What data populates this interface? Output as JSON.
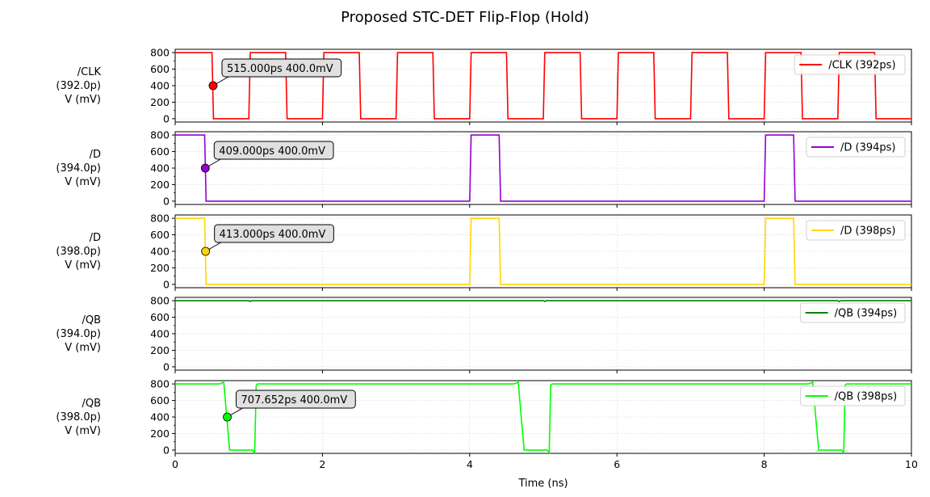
{
  "chart_data": {
    "type": "line",
    "title": "Proposed STC-DET Flip-Flop (Hold)",
    "xlabel": "Time (ns)",
    "xlim": [
      0,
      10
    ],
    "xticks": [
      "0",
      "2",
      "4",
      "6",
      "8",
      "10"
    ],
    "ylim": [
      -40,
      840
    ],
    "yticks": [
      "0",
      "200",
      "400",
      "600",
      "800"
    ],
    "grid": true,
    "legend_position": "upper-right",
    "panels": [
      {
        "ylabel": [
          "/CLK",
          "(392.0p)",
          "V (mV)"
        ],
        "legend": "/CLK (392ps)",
        "color": "#ff0000",
        "x": [
          0,
          0.5,
          0.52,
          1.0,
          1.02,
          1.5,
          1.52,
          2.0,
          2.02,
          2.5,
          2.52,
          3.0,
          3.02,
          3.5,
          3.52,
          4.0,
          4.02,
          4.5,
          4.52,
          5.0,
          5.02,
          5.5,
          5.52,
          6.0,
          6.02,
          6.5,
          6.52,
          7.0,
          7.02,
          7.5,
          7.52,
          8.0,
          8.02,
          8.5,
          8.52,
          9.0,
          9.02,
          9.5,
          9.52,
          10.0
        ],
        "y": [
          800,
          800,
          0,
          0,
          800,
          800,
          0,
          0,
          800,
          800,
          0,
          0,
          800,
          800,
          0,
          0,
          800,
          800,
          0,
          0,
          800,
          800,
          0,
          0,
          800,
          800,
          0,
          0,
          800,
          800,
          0,
          0,
          800,
          800,
          0,
          0,
          800,
          800,
          0,
          0
        ],
        "marker": {
          "x": 0.515,
          "y": 400,
          "label": "515.000ps 400.0mV"
        }
      },
      {
        "ylabel": [
          "/D",
          "(394.0p)",
          "V (mV)"
        ],
        "legend": "/D (394ps)",
        "color": "#9400d3",
        "x": [
          0,
          0.4,
          0.42,
          4.0,
          4.02,
          4.4,
          4.42,
          8.0,
          8.02,
          8.4,
          8.42,
          10.0
        ],
        "y": [
          800,
          800,
          0,
          0,
          800,
          800,
          0,
          0,
          800,
          800,
          0,
          0
        ],
        "marker": {
          "x": 0.409,
          "y": 400,
          "label": "409.000ps 400.0mV"
        }
      },
      {
        "ylabel": [
          "/D",
          "(398.0p)",
          "V (mV)"
        ],
        "legend": "/D (398ps)",
        "color": "#ffd700",
        "x": [
          0,
          0.4,
          0.42,
          4.0,
          4.02,
          4.4,
          4.42,
          8.0,
          8.02,
          8.4,
          8.42,
          10.0
        ],
        "y": [
          800,
          800,
          0,
          0,
          800,
          800,
          0,
          0,
          800,
          800,
          0,
          0
        ],
        "marker": {
          "x": 0.413,
          "y": 400,
          "label": "413.000ps 400.0mV"
        }
      },
      {
        "ylabel": [
          "/QB",
          "(394.0p)",
          "V (mV)"
        ],
        "legend": "/QB (394ps)",
        "color": "#008000",
        "x": [
          0,
          1.0,
          1.02,
          1.04,
          5.0,
          5.02,
          5.04,
          9.0,
          9.02,
          9.04,
          10.0
        ],
        "y": [
          800,
          800,
          790,
          800,
          800,
          790,
          800,
          800,
          790,
          800,
          800
        ]
      },
      {
        "ylabel": [
          "/QB",
          "(398.0p)",
          "V (mV)"
        ],
        "legend": "/QB (398ps)",
        "color": "#00ff00",
        "x": [
          0,
          0.6,
          0.66,
          0.7,
          0.74,
          1.05,
          1.08,
          1.1,
          1.12,
          4.6,
          4.66,
          4.7,
          4.74,
          5.05,
          5.08,
          5.1,
          5.12,
          8.6,
          8.66,
          8.7,
          8.74,
          9.05,
          9.08,
          9.1,
          9.12,
          10.0
        ],
        "y": [
          800,
          800,
          820,
          400,
          0,
          0,
          -30,
          780,
          800,
          800,
          820,
          400,
          0,
          0,
          -30,
          780,
          800,
          800,
          820,
          400,
          0,
          0,
          -30,
          780,
          800,
          800
        ],
        "marker": {
          "x": 0.707652,
          "y": 400,
          "label": "707.652ps 400.0mV"
        }
      }
    ]
  }
}
